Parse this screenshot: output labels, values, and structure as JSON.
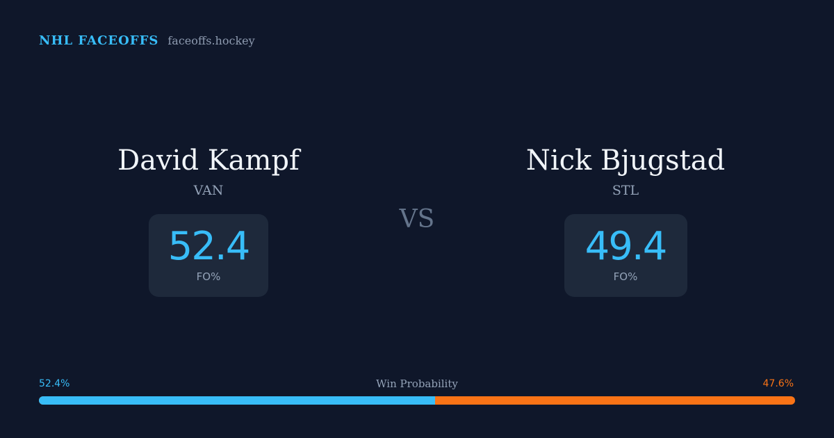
{
  "brand": {
    "name": "NHL FACEOFFS",
    "domain": "faceoffs.hockey"
  },
  "players": {
    "left": {
      "name": "David Kampf",
      "team": "VAN",
      "stat_value": "52.4",
      "stat_label": "FO%"
    },
    "right": {
      "name": "Nick Bjugstad",
      "team": "STL",
      "stat_value": "49.4",
      "stat_label": "FO%"
    }
  },
  "vs_label": "VS",
  "win_probability": {
    "title": "Win Probability",
    "left_label": "52.4%",
    "right_label": "47.6%",
    "left_value": 52.4,
    "right_value": 47.6
  },
  "colors": {
    "background": "#0f172a",
    "accent_blue": "#38bdf8",
    "accent_orange": "#f97316",
    "card": "#1e293b"
  }
}
